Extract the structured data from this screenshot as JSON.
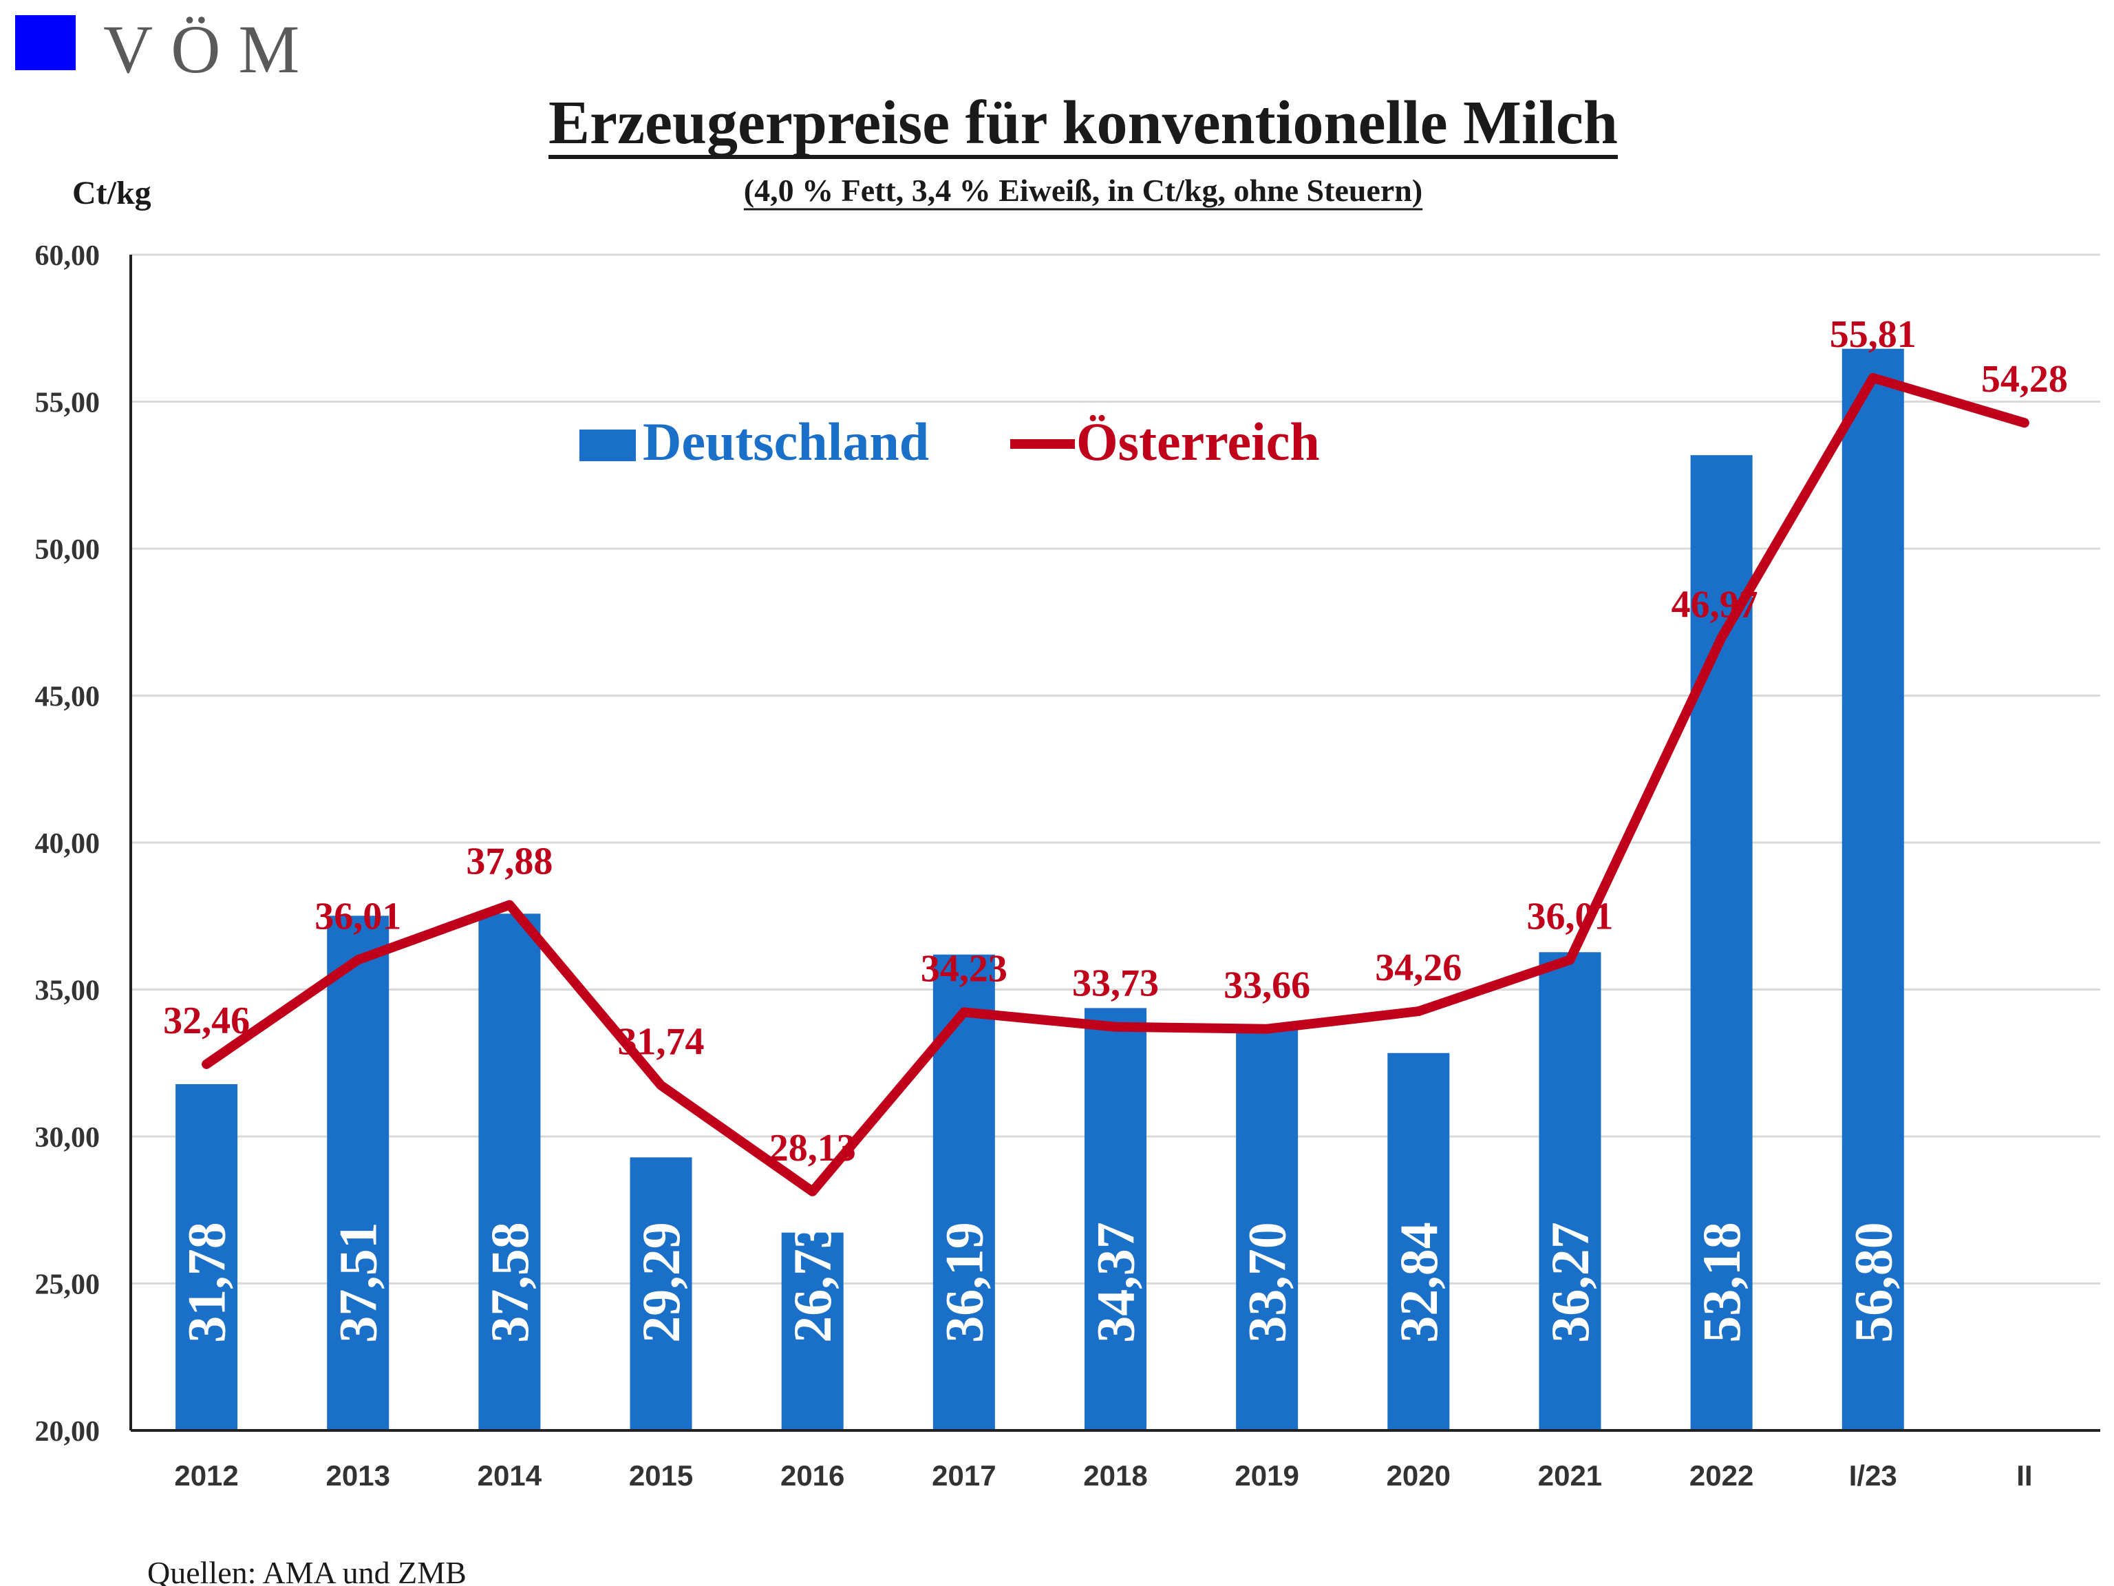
{
  "logo": {
    "text": "VÖM",
    "square_color": "#0000ff"
  },
  "source_note": "Quellen: AMA und ZMB",
  "chart_data": {
    "type": "bar",
    "title": "Erzeugerpreise für konventionelle Milch",
    "subtitle": "(4,0 % Fett, 3,4 % Eiweiß, in Ct/kg, ohne Steuern)",
    "ylabel": "Ct/kg",
    "xlabel": "",
    "ylim": [
      20,
      60
    ],
    "ytick_step": 5,
    "yticks": [
      "20,00",
      "25,00",
      "30,00",
      "35,00",
      "40,00",
      "45,00",
      "50,00",
      "55,00",
      "60,00"
    ],
    "grid": true,
    "legend_position": "top-center",
    "categories": [
      "2012",
      "2013",
      "2014",
      "2015",
      "2016",
      "2017",
      "2018",
      "2019",
      "2020",
      "2021",
      "2022",
      "I/23",
      "II"
    ],
    "series": [
      {
        "name": "Deutschland",
        "type": "bar",
        "color": "#1a6fc8",
        "values": [
          31.78,
          37.51,
          37.58,
          29.29,
          26.73,
          36.19,
          34.37,
          33.7,
          32.84,
          36.27,
          53.18,
          56.8,
          null
        ],
        "labels": [
          "31,78",
          "37,51",
          "37,58",
          "29,29",
          "26,73",
          "36,19",
          "34,37",
          "33,70",
          "32,84",
          "36,27",
          "53,18",
          "56,80",
          ""
        ]
      },
      {
        "name": "Österreich",
        "type": "line",
        "color": "#c0001a",
        "values": [
          32.46,
          36.01,
          37.88,
          31.74,
          28.13,
          34.23,
          33.73,
          33.66,
          34.26,
          36.01,
          46.97,
          55.81,
          54.28
        ],
        "labels": [
          "32,46",
          "36,01",
          "37,88",
          "31,74",
          "28,13",
          "34,23",
          "33,73",
          "33,66",
          "34,26",
          "36,01",
          "46,97",
          "55,81",
          "54,28"
        ]
      }
    ]
  }
}
